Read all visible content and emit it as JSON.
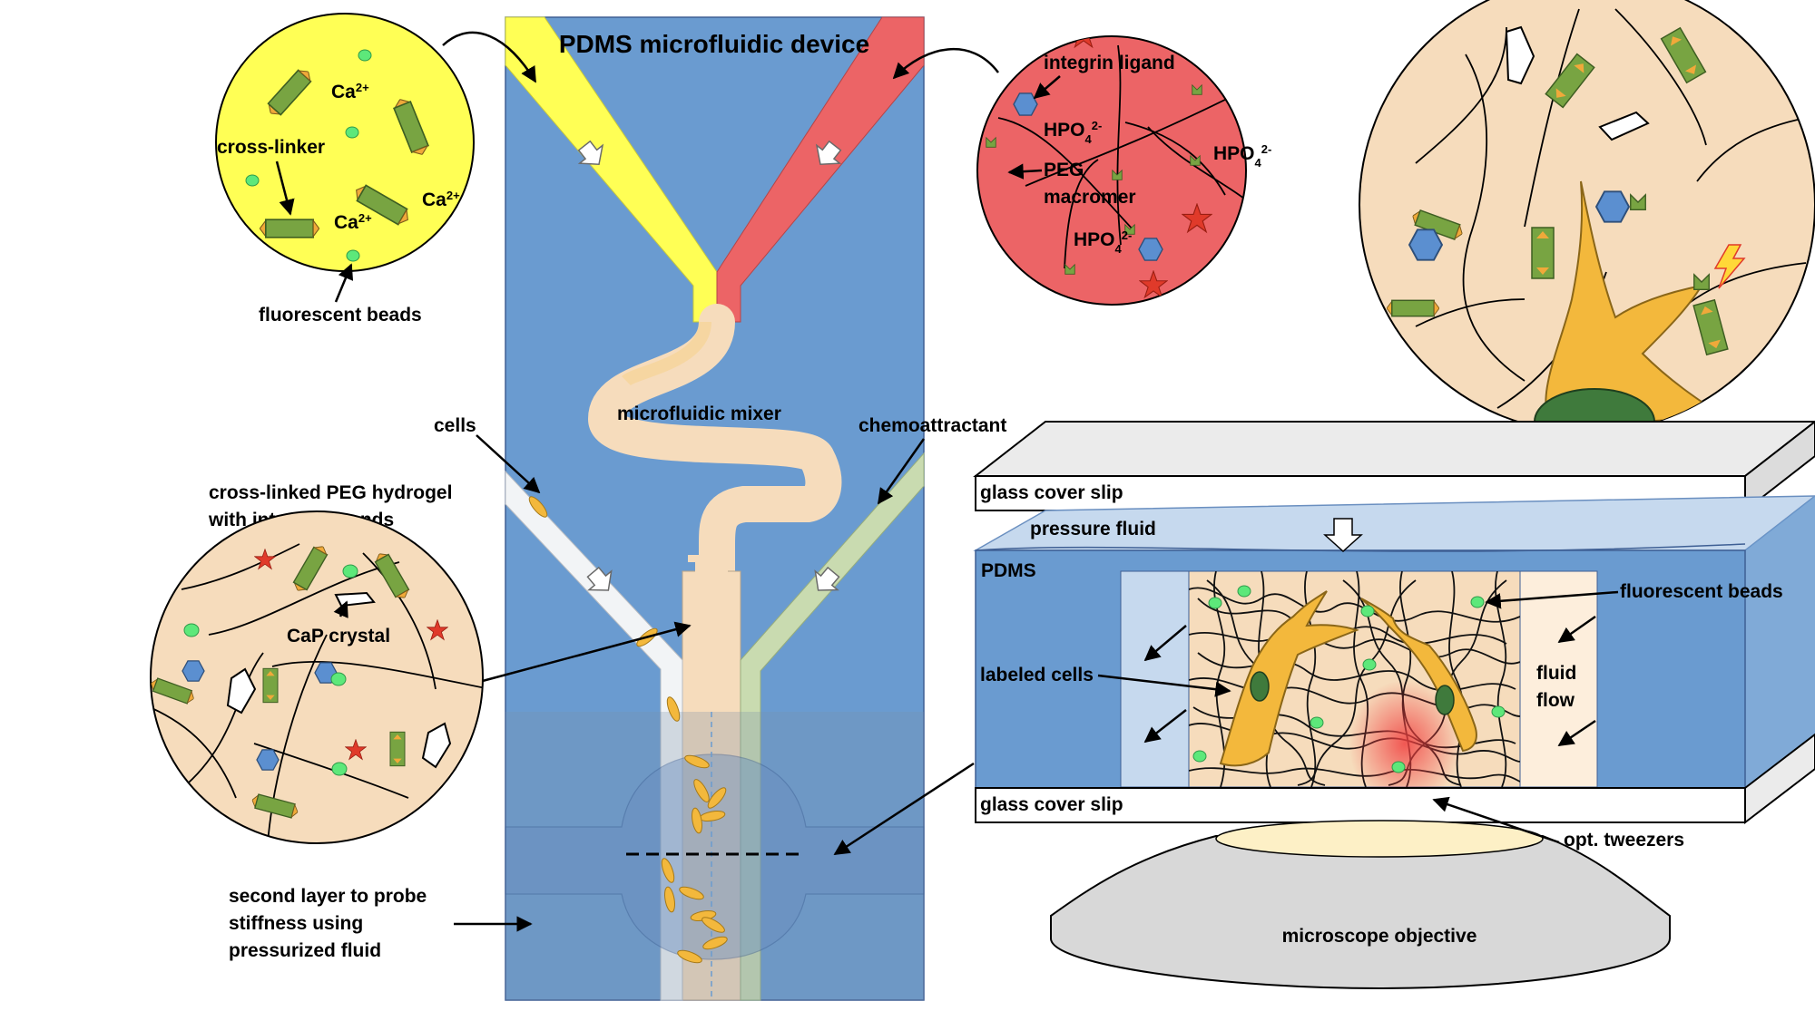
{
  "title": "PDMS microfluidic device",
  "labels": {
    "mixer": "microfluidic mixer",
    "cells": "cells",
    "chemoattractant": "chemoattractant",
    "hydrogel_line1": "cross-linked PEG hydrogel",
    "hydrogel_line2": "with integrin ligands",
    "cap_crystal": "CaP crystal",
    "second_layer_line1": "second layer to probe",
    "second_layer_line2": "stiffness using",
    "second_layer_line3": "pressurized fluid"
  },
  "yellow_circle": {
    "cross_linker": "cross-linker",
    "fluorescent_beads": "fluorescent beads",
    "ion_base": "Ca",
    "ion_charge": "2+"
  },
  "red_circle": {
    "integrin_ligand": "integrin ligand",
    "peg_line1": "PEG",
    "peg_line2": "macromer",
    "phosphate_base": "HPO",
    "phosphate_sub": "4",
    "phosphate_charge": "2-"
  },
  "side_view": {
    "glass_top": "glass cover slip",
    "glass_bottom": "glass cover slip",
    "pressure_fluid": "pressure fluid",
    "pdms": "PDMS",
    "fluorescent_beads": "fluorescent beads",
    "labeled_cells": "labeled cells",
    "fluid_line1": "fluid",
    "fluid_line2": "flow",
    "opt_tweezers": "opt. tweezers",
    "objective": "microscope objective"
  },
  "colors": {
    "device_blue": "#6a9bd0",
    "yellow_fluid": "#ffff55",
    "red_fluid": "#ec6466",
    "gel_beige": "#f6dcbc",
    "cross_linker_green": "#78a442",
    "bead_green": "#5de87a",
    "ligand_blue": "#5b8fd0",
    "cell_orange": "#f3b83c"
  }
}
